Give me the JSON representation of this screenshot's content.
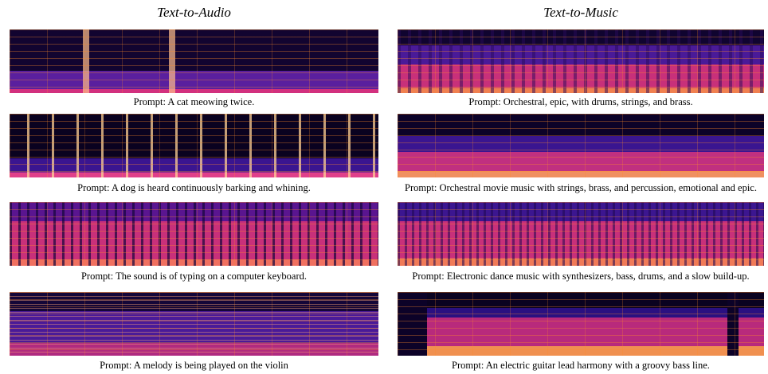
{
  "columns": [
    {
      "title": "Text-to-Audio",
      "prompts": [
        "Prompt: A cat meowing twice.",
        "Prompt: A dog is heard continuously barking and whining.",
        "Prompt: The sound is of typing on a computer keyboard.",
        "Prompt: A melody is being played on the violin"
      ]
    },
    {
      "title": "Text-to-Music",
      "prompts": [
        "Prompt: Orchestral, epic, with drums, strings, and brass.",
        "Prompt: Orchestral movie music with strings, brass, and percussion, emotional and epic.",
        "Prompt: Electronic dance music with synthesizers, bass, drums, and a slow build-up.",
        "Prompt: An electric guitar lead harmony with a groovy bass line."
      ]
    }
  ]
}
